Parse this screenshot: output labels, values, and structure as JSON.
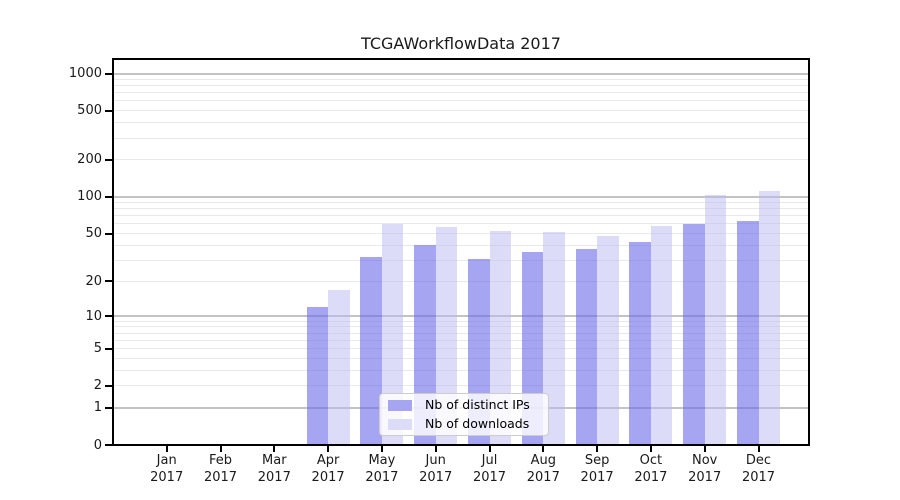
{
  "chart_data": {
    "type": "bar",
    "title": "TCGAWorkflowData 2017",
    "categories": [
      {
        "month": "Jan",
        "year": "2017"
      },
      {
        "month": "Feb",
        "year": "2017"
      },
      {
        "month": "Mar",
        "year": "2017"
      },
      {
        "month": "Apr",
        "year": "2017"
      },
      {
        "month": "May",
        "year": "2017"
      },
      {
        "month": "Jun",
        "year": "2017"
      },
      {
        "month": "Jul",
        "year": "2017"
      },
      {
        "month": "Aug",
        "year": "2017"
      },
      {
        "month": "Sep",
        "year": "2017"
      },
      {
        "month": "Oct",
        "year": "2017"
      },
      {
        "month": "Nov",
        "year": "2017"
      },
      {
        "month": "Dec",
        "year": "2017"
      }
    ],
    "series": [
      {
        "name": "Nb of distinct IPs",
        "values": [
          0,
          0,
          0,
          12,
          32,
          40,
          31,
          35,
          37,
          43,
          60,
          64
        ],
        "fill_rgba": "rgba(105,105,233,0.6)",
        "swatch_hex": "#a5a5f2"
      },
      {
        "name": "Nb of downloads",
        "values": [
          0,
          0,
          0,
          17,
          60,
          57,
          53,
          52,
          48,
          58,
          103,
          112
        ],
        "fill_rgba": "rgba(185,185,243,0.5)",
        "swatch_hex": "#dcdcf9"
      }
    ],
    "xlabel": "",
    "ylabel": "",
    "yscale": "log1p",
    "ylim": [
      0,
      1300
    ],
    "yticks": [
      0,
      1,
      2,
      5,
      10,
      20,
      50,
      100,
      200,
      500,
      1000
    ],
    "grid": true,
    "legend_position": "lower center",
    "colors": {
      "grid_major": "#c3c3c3",
      "grid_minor": "#e9e9e9",
      "axis_frame": "#000000",
      "background": "#ffffff"
    }
  }
}
